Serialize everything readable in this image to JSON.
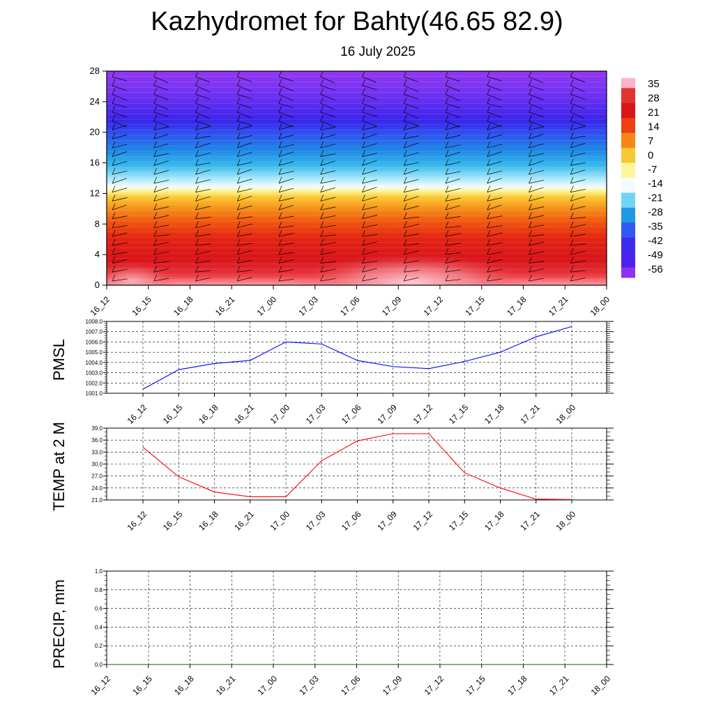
{
  "title": "Kazhydromet for Bahty(46.65 82.9)",
  "subtitle": "16 July 2025",
  "time_labels": [
    "16_12",
    "16_15",
    "16_18",
    "16_21",
    "17_00",
    "17_03",
    "17_06",
    "17_09",
    "17_12",
    "17_15",
    "17_18",
    "17_21",
    "18_00"
  ],
  "chart_data": [
    {
      "type": "heatmap",
      "title": "",
      "xlabel": "",
      "ylabel": "",
      "x": [
        "16_12",
        "16_15",
        "16_18",
        "16_21",
        "17_00",
        "17_03",
        "17_06",
        "17_09",
        "17_12",
        "17_15",
        "17_18",
        "17_21",
        "18_00"
      ],
      "y_ticks": [
        0,
        4,
        8,
        12,
        16,
        20,
        24,
        28
      ],
      "ylim": [
        0,
        28
      ],
      "colorbar_labels": [
        "35",
        "28",
        "21",
        "14",
        "7",
        "0",
        "-7",
        "-14",
        "-21",
        "-28",
        "-35",
        "-42",
        "-49",
        "-56"
      ],
      "colorbar_colors": [
        "#ffb3c8",
        "#e0342f",
        "#d8161a",
        "#ee4010",
        "#f6861a",
        "#f9c834",
        "#fff69a",
        "#f2fbff",
        "#6ed6f2",
        "#1e9ae2",
        "#3258f2",
        "#3d2cee",
        "#5020f0",
        "#9030f2"
      ],
      "wind_barbs": true
    },
    {
      "type": "line",
      "title": "",
      "xlabel": "",
      "ylabel": "PMSL",
      "ylim": [
        1001.0,
        1008.0
      ],
      "y_ticks": [
        "1001.0",
        "1002.0",
        "1003.0",
        "1004.0",
        "1005.0",
        "1006.0",
        "1007.0",
        "1008.0"
      ],
      "x": [
        "16_12",
        "16_15",
        "16_18",
        "16_21",
        "17_00",
        "17_03",
        "17_06",
        "17_09",
        "17_12",
        "17_15",
        "17_18",
        "17_21",
        "18_00"
      ],
      "values": [
        1001.4,
        1003.3,
        1003.9,
        1004.2,
        1006.0,
        1005.8,
        1004.2,
        1003.6,
        1003.4,
        1004.1,
        1005.0,
        1006.5,
        1007.5
      ],
      "color": "#0000ff",
      "grid": true
    },
    {
      "type": "line",
      "title": "",
      "xlabel": "",
      "ylabel": "TEMP at 2 M",
      "ylim": [
        21.0,
        39.0
      ],
      "y_ticks": [
        "21.0",
        "24.0",
        "27.0",
        "30.0",
        "33.0",
        "36.0",
        "39.0"
      ],
      "x": [
        "16_12",
        "16_15",
        "16_18",
        "16_21",
        "17_00",
        "17_03",
        "17_06",
        "17_09",
        "17_12",
        "17_15",
        "17_18",
        "17_21",
        "18_00"
      ],
      "values": [
        34.2,
        26.8,
        23.0,
        21.8,
        21.8,
        30.8,
        35.8,
        37.6,
        37.6,
        27.8,
        24.0,
        21.2,
        21.1
      ],
      "color": "#ff0000",
      "grid": true
    },
    {
      "type": "line",
      "title": "",
      "xlabel": "",
      "ylabel": "PRECIP, mm",
      "ylim": [
        0.0,
        1.0
      ],
      "y_ticks": [
        "0.0",
        "0.2",
        "0.4",
        "0.6",
        "0.8",
        "1.0"
      ],
      "x": [
        "16_12",
        "16_15",
        "16_18",
        "16_21",
        "17_00",
        "17_03",
        "17_06",
        "17_09",
        "17_12",
        "17_15",
        "17_18",
        "17_21",
        "18_00"
      ],
      "values": [
        0,
        0,
        0,
        0,
        0,
        0,
        0,
        0,
        0,
        0,
        0,
        0,
        0
      ],
      "color": "#006400",
      "grid": true
    }
  ]
}
